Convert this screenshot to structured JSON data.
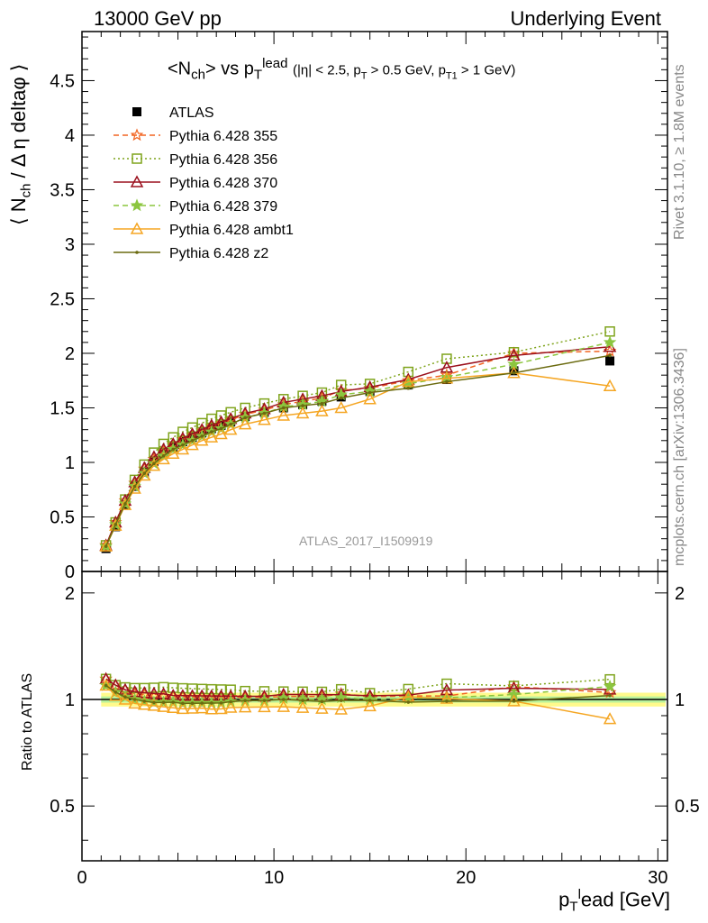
{
  "header": {
    "left": "13000 GeV pp",
    "right": "Underlying Event"
  },
  "side_labels": {
    "rivet": "Rivet 3.1.10, ≥ 1.8M events",
    "mcplots": "mcplots.cern.ch [arXiv:1306.3436]"
  },
  "plot_title": {
    "main": "<N",
    "main_sub": "ch",
    "main_rest": "> vs p",
    "main_sup": "lead",
    "main_sub2": "T",
    "cuts": "(|η| < 2.5, p",
    "cuts_sub1": "T",
    "cuts_mid": " > 0.5 GeV, p",
    "cuts_sub2": "T1",
    "cuts_end": " > 1 GeV)"
  },
  "watermark": "ATLAS_2017_I1509919",
  "colors": {
    "ATLAS": "#000000",
    "p355": "#f26522",
    "p356": "#7fa41c",
    "p370": "#9b111e",
    "p379": "#8cc63f",
    "ambt1": "#f5a623",
    "z2": "#6b6b10",
    "band_outer": "#fffa8c",
    "band_inner": "#a8f0a0"
  },
  "chart_data": {
    "type": "line",
    "ylabel": "⟨ N_ch / Δη deltaφ ⟩",
    "ylabel_parts": {
      "a": "⟨ N",
      "sub": "ch",
      "b": " / Δ η deltaφ ⟩"
    },
    "ratio_ylabel": "Ratio to ATLAS",
    "xlabel_parts": {
      "a": "p",
      "sub": "T",
      "sup": "l",
      "b": "ead [GeV]"
    },
    "xlim": [
      0,
      30.5
    ],
    "ylim_main": [
      0,
      4.95
    ],
    "ylim_ratio": [
      0.35,
      2.3
    ],
    "xticks": [
      0,
      10,
      20,
      30
    ],
    "yticks_main": [
      0,
      0.5,
      1,
      1.5,
      2,
      2.5,
      3,
      3.5,
      4,
      4.5
    ],
    "ytick_labels_main": [
      "0",
      "0.5",
      "1",
      "1.5",
      "2",
      "2.5",
      "3",
      "3.5",
      "4",
      "4.5"
    ],
    "yticks_ratio": [
      0.5,
      1,
      2
    ],
    "ytick_labels_ratio": [
      "0.5",
      "1",
      "2"
    ],
    "x": [
      1.25,
      1.75,
      2.25,
      2.75,
      3.25,
      3.75,
      4.25,
      4.75,
      5.25,
      5.75,
      6.25,
      6.75,
      7.25,
      7.75,
      8.5,
      9.5,
      10.5,
      11.5,
      12.5,
      13.5,
      15.0,
      17.0,
      19.0,
      22.5,
      27.5
    ],
    "series": [
      {
        "name": "ATLAS",
        "key": "ATLAS",
        "marker": "square_filled",
        "line": "none",
        "values": [
          0.21,
          0.41,
          0.61,
          0.78,
          0.91,
          1.01,
          1.08,
          1.14,
          1.19,
          1.23,
          1.27,
          1.31,
          1.34,
          1.37,
          1.42,
          1.46,
          1.5,
          1.53,
          1.56,
          1.6,
          1.65,
          1.71,
          1.76,
          1.84,
          1.93
        ]
      },
      {
        "name": "Pythia 6.428 355",
        "key": "p355",
        "marker": "star_open",
        "line": "dashed",
        "values": [
          0.24,
          0.45,
          0.65,
          0.81,
          0.94,
          1.03,
          1.1,
          1.16,
          1.21,
          1.25,
          1.29,
          1.33,
          1.36,
          1.39,
          1.44,
          1.48,
          1.53,
          1.56,
          1.59,
          1.66,
          1.68,
          1.75,
          1.8,
          2.0,
          2.02
        ]
      },
      {
        "name": "Pythia 6.428 356",
        "key": "p356",
        "marker": "square_open",
        "line": "dotted",
        "values": [
          0.24,
          0.45,
          0.66,
          0.84,
          0.98,
          1.09,
          1.17,
          1.23,
          1.28,
          1.32,
          1.36,
          1.4,
          1.43,
          1.46,
          1.5,
          1.54,
          1.58,
          1.61,
          1.64,
          1.71,
          1.72,
          1.83,
          1.95,
          2.01,
          2.2
        ]
      },
      {
        "name": "Pythia 6.428 370",
        "key": "p370",
        "marker": "triangle_open",
        "line": "solid",
        "values": [
          0.24,
          0.45,
          0.65,
          0.82,
          0.95,
          1.05,
          1.12,
          1.17,
          1.22,
          1.26,
          1.3,
          1.34,
          1.37,
          1.4,
          1.45,
          1.49,
          1.55,
          1.58,
          1.61,
          1.65,
          1.69,
          1.76,
          1.87,
          1.98,
          2.06
        ]
      },
      {
        "name": "Pythia 6.428 379",
        "key": "p379",
        "marker": "star_filled",
        "line": "dashed",
        "values": [
          0.23,
          0.43,
          0.62,
          0.78,
          0.9,
          0.99,
          1.06,
          1.12,
          1.16,
          1.2,
          1.24,
          1.28,
          1.31,
          1.35,
          1.41,
          1.45,
          1.51,
          1.53,
          1.56,
          1.62,
          1.65,
          1.72,
          1.78,
          1.9,
          2.1
        ]
      },
      {
        "name": "Pythia 6.428 ambt1",
        "key": "ambt1",
        "marker": "triangle_open",
        "line": "solid",
        "values": [
          0.23,
          0.42,
          0.61,
          0.76,
          0.88,
          0.97,
          1.03,
          1.08,
          1.12,
          1.16,
          1.2,
          1.23,
          1.26,
          1.3,
          1.35,
          1.39,
          1.43,
          1.45,
          1.47,
          1.5,
          1.58,
          1.74,
          1.77,
          1.82,
          1.7
        ]
      },
      {
        "name": "Pythia 6.428 z2",
        "key": "z2",
        "marker": "dot",
        "line": "solid",
        "values": [
          0.23,
          0.43,
          0.62,
          0.78,
          0.9,
          0.99,
          1.06,
          1.12,
          1.16,
          1.2,
          1.24,
          1.28,
          1.31,
          1.35,
          1.41,
          1.45,
          1.5,
          1.52,
          1.54,
          1.59,
          1.64,
          1.68,
          1.74,
          1.82,
          1.98
        ]
      }
    ]
  }
}
